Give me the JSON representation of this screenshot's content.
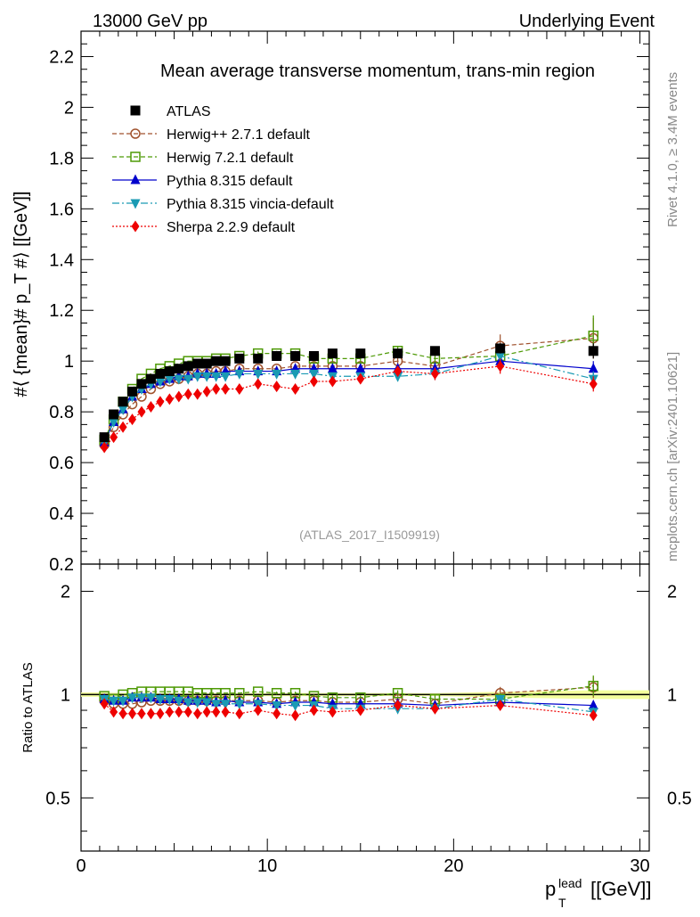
{
  "header": {
    "left": "13000 GeV pp",
    "right": "Underlying Event"
  },
  "side_labels": {
    "rivet": "Rivet 4.1.0, ≥ 3.4M events",
    "mcplots": "mcplots.cern.ch [arXiv:2401.10621]"
  },
  "chart_data": [
    {
      "type": "scatter",
      "panel": "main",
      "title": "Mean average transverse momentum, trans-min region",
      "ylabel": "#⟨ {mean}# p_T #⟩ [[GeV]]",
      "xlabel": "",
      "watermark": "(ATLAS_2017_I1509919)",
      "xlim": [
        0,
        30.5
      ],
      "ylim": [
        0.2,
        2.3
      ],
      "xticks": [
        0,
        10,
        20,
        30
      ],
      "yticks": [
        0.2,
        0.4,
        0.6,
        0.8,
        1,
        1.2,
        1.4,
        1.6,
        1.8,
        2,
        2.2
      ],
      "ytick_labels": [
        "0.2",
        "0.4",
        "0.6",
        "0.8",
        "1",
        "1.2",
        "1.4",
        "1.6",
        "1.8",
        "2",
        "2.2"
      ],
      "x": [
        1.25,
        1.75,
        2.25,
        2.75,
        3.25,
        3.75,
        4.25,
        4.75,
        5.25,
        5.75,
        6.25,
        6.75,
        7.25,
        7.75,
        8.5,
        9.5,
        10.5,
        11.5,
        12.5,
        13.5,
        15,
        17,
        19,
        22.5,
        27.5
      ],
      "series": [
        {
          "name": "ATLAS",
          "color": "#000000",
          "marker": "square-filled",
          "line": "none",
          "values": [
            0.7,
            0.79,
            0.84,
            0.88,
            0.91,
            0.93,
            0.95,
            0.96,
            0.97,
            0.98,
            0.99,
            0.99,
            1.0,
            1.0,
            1.01,
            1.01,
            1.02,
            1.02,
            1.02,
            1.03,
            1.03,
            1.03,
            1.04,
            1.05,
            1.04
          ],
          "errors": [
            0.01,
            0.01,
            0.01,
            0.01,
            0.01,
            0.01,
            0.01,
            0.01,
            0.01,
            0.01,
            0.01,
            0.01,
            0.01,
            0.01,
            0.01,
            0.01,
            0.01,
            0.01,
            0.01,
            0.01,
            0.01,
            0.01,
            0.01,
            0.02,
            0.03
          ]
        },
        {
          "name": "Herwig++ 2.7.1 default",
          "color": "#a0522d",
          "marker": "circle-open",
          "line": "dashed",
          "values": [
            0.67,
            0.74,
            0.79,
            0.83,
            0.86,
            0.89,
            0.91,
            0.92,
            0.93,
            0.94,
            0.95,
            0.95,
            0.96,
            0.96,
            0.97,
            0.97,
            0.97,
            0.98,
            0.98,
            0.98,
            0.98,
            1.0,
            0.98,
            1.06,
            1.09
          ],
          "errors": [
            0.003,
            0.003,
            0.003,
            0.003,
            0.004,
            0.004,
            0.004,
            0.004,
            0.004,
            0.005,
            0.005,
            0.005,
            0.006,
            0.006,
            0.006,
            0.008,
            0.01,
            0.01,
            0.012,
            0.015,
            0.015,
            0.02,
            0.025,
            0.045,
            0.08
          ]
        },
        {
          "name": "Herwig 7.2.1 default",
          "color": "#4e9a06",
          "marker": "square-open",
          "line": "dashed",
          "values": [
            0.69,
            0.77,
            0.84,
            0.89,
            0.93,
            0.95,
            0.97,
            0.98,
            0.99,
            1.0,
            1.0,
            1.0,
            1.01,
            1.01,
            1.02,
            1.03,
            1.03,
            1.03,
            1.01,
            1.01,
            1.01,
            1.04,
            1.01,
            1.02,
            1.1
          ],
          "errors": [
            0.003,
            0.003,
            0.003,
            0.003,
            0.004,
            0.004,
            0.004,
            0.004,
            0.004,
            0.005,
            0.005,
            0.005,
            0.006,
            0.006,
            0.006,
            0.008,
            0.01,
            0.01,
            0.012,
            0.015,
            0.015,
            0.02,
            0.025,
            0.04,
            0.08
          ]
        },
        {
          "name": "Pythia 8.315 default",
          "color": "#0000cc",
          "marker": "triangle-up-filled",
          "line": "solid",
          "values": [
            0.68,
            0.76,
            0.81,
            0.86,
            0.89,
            0.91,
            0.92,
            0.93,
            0.94,
            0.94,
            0.95,
            0.95,
            0.95,
            0.96,
            0.96,
            0.96,
            0.96,
            0.97,
            0.97,
            0.97,
            0.97,
            0.97,
            0.97,
            1.0,
            0.97
          ],
          "errors": [
            0.003,
            0.003,
            0.003,
            0.003,
            0.004,
            0.004,
            0.004,
            0.004,
            0.004,
            0.005,
            0.005,
            0.005,
            0.006,
            0.006,
            0.006,
            0.008,
            0.01,
            0.01,
            0.012,
            0.015,
            0.015,
            0.02,
            0.025,
            0.03,
            0.03
          ]
        },
        {
          "name": "Pythia 8.315 vincia-default",
          "color": "#1a9ab3",
          "marker": "triangle-down-filled",
          "line": "dashdot",
          "values": [
            0.68,
            0.76,
            0.81,
            0.86,
            0.89,
            0.91,
            0.92,
            0.93,
            0.93,
            0.93,
            0.94,
            0.94,
            0.94,
            0.94,
            0.95,
            0.95,
            0.95,
            0.95,
            0.95,
            0.94,
            0.94,
            0.94,
            0.95,
            1.02,
            0.93
          ],
          "errors": [
            0.003,
            0.003,
            0.003,
            0.003,
            0.004,
            0.004,
            0.004,
            0.004,
            0.004,
            0.005,
            0.005,
            0.005,
            0.006,
            0.006,
            0.006,
            0.008,
            0.01,
            0.01,
            0.012,
            0.015,
            0.015,
            0.02,
            0.025,
            0.03,
            0.03
          ]
        },
        {
          "name": "Sherpa 2.2.9 default",
          "color": "#ee0000",
          "marker": "diamond-filled",
          "line": "dotted",
          "values": [
            0.66,
            0.7,
            0.74,
            0.77,
            0.8,
            0.82,
            0.84,
            0.85,
            0.86,
            0.87,
            0.87,
            0.88,
            0.89,
            0.89,
            0.89,
            0.91,
            0.9,
            0.89,
            0.92,
            0.92,
            0.93,
            0.96,
            0.95,
            0.98,
            0.91
          ],
          "errors": [
            0.003,
            0.003,
            0.003,
            0.003,
            0.004,
            0.004,
            0.004,
            0.004,
            0.004,
            0.005,
            0.005,
            0.005,
            0.006,
            0.006,
            0.006,
            0.008,
            0.01,
            0.01,
            0.012,
            0.015,
            0.015,
            0.02,
            0.025,
            0.03,
            0.03
          ]
        }
      ]
    },
    {
      "type": "scatter",
      "panel": "ratio",
      "title": "",
      "ylabel": "Ratio to ATLAS",
      "xlabel": "p_T^lead [[GeV]]",
      "xlabel_main": "p",
      "xlabel_sup": "lead",
      "xlabel_sub": "T",
      "xlabel_unit": "[[GeV]]",
      "xlim": [
        0,
        30.5
      ],
      "ylim": [
        0.35,
        2.4
      ],
      "yscale": "log",
      "xticks": [
        0,
        10,
        20,
        30
      ],
      "xtick_labels": [
        "0",
        "10",
        "20",
        "30"
      ],
      "yticks": [
        0.5,
        1,
        2
      ],
      "ytick_labels": [
        "0.5",
        "1",
        "2"
      ],
      "band_note": "ATLAS uncertainty band around 1",
      "x": [
        1.25,
        1.75,
        2.25,
        2.75,
        3.25,
        3.75,
        4.25,
        4.75,
        5.25,
        5.75,
        6.25,
        6.75,
        7.25,
        7.75,
        8.5,
        9.5,
        10.5,
        11.5,
        12.5,
        13.5,
        15,
        17,
        19,
        22.5,
        27.5
      ],
      "series": [
        {
          "name": "Herwig++ 2.7.1 default",
          "values": [
            0.96,
            0.94,
            0.94,
            0.94,
            0.95,
            0.96,
            0.96,
            0.96,
            0.96,
            0.96,
            0.96,
            0.96,
            0.96,
            0.96,
            0.96,
            0.96,
            0.95,
            0.96,
            0.96,
            0.95,
            0.95,
            0.97,
            0.94,
            1.01,
            1.05
          ]
        },
        {
          "name": "Herwig 7.2.1 default",
          "values": [
            0.99,
            0.97,
            1.0,
            1.01,
            1.02,
            1.02,
            1.02,
            1.02,
            1.02,
            1.02,
            1.01,
            1.01,
            1.01,
            1.01,
            1.01,
            1.02,
            1.01,
            1.01,
            0.99,
            0.98,
            0.98,
            1.01,
            0.97,
            0.97,
            1.06
          ]
        },
        {
          "name": "Pythia 8.315 default",
          "values": [
            0.97,
            0.96,
            0.96,
            0.98,
            0.98,
            0.98,
            0.97,
            0.97,
            0.97,
            0.96,
            0.96,
            0.96,
            0.95,
            0.96,
            0.95,
            0.95,
            0.94,
            0.95,
            0.95,
            0.94,
            0.94,
            0.94,
            0.93,
            0.95,
            0.93
          ]
        },
        {
          "name": "Pythia 8.315 vincia-default",
          "values": [
            0.97,
            0.96,
            0.96,
            0.98,
            0.98,
            0.98,
            0.97,
            0.97,
            0.96,
            0.95,
            0.95,
            0.95,
            0.94,
            0.94,
            0.94,
            0.94,
            0.93,
            0.93,
            0.93,
            0.91,
            0.91,
            0.91,
            0.91,
            0.97,
            0.89
          ]
        },
        {
          "name": "Sherpa 2.2.9 default",
          "values": [
            0.94,
            0.89,
            0.88,
            0.88,
            0.88,
            0.88,
            0.88,
            0.89,
            0.89,
            0.89,
            0.88,
            0.89,
            0.89,
            0.89,
            0.88,
            0.9,
            0.88,
            0.87,
            0.9,
            0.89,
            0.9,
            0.93,
            0.91,
            0.93,
            0.87
          ]
        }
      ]
    }
  ]
}
